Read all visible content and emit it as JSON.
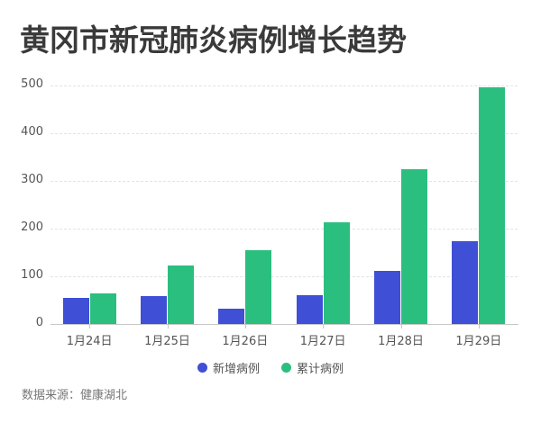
{
  "title": "黄冈市新冠肺炎病例增长趋势",
  "source": "数据来源：健康湖北",
  "colors": {
    "new": "#3f4fd6",
    "cumulative": "#2bbf7f"
  },
  "legend": [
    {
      "label": "新增病例",
      "color": "#3f4fd6"
    },
    {
      "label": "累计病例",
      "color": "#2bbf7f"
    }
  ],
  "chart_data": {
    "type": "bar",
    "title": "黄冈市新冠肺炎病例增长趋势",
    "xlabel": "",
    "ylabel": "",
    "categories": [
      "1月24日",
      "1月25日",
      "1月26日",
      "1月27日",
      "1月28日",
      "1月29日"
    ],
    "series": [
      {
        "name": "新增病例",
        "color": "#3f4fd6",
        "values": [
          55,
          58,
          33,
          60,
          111,
          173
        ]
      },
      {
        "name": "累计病例",
        "color": "#2bbf7f",
        "values": [
          64,
          122,
          154,
          213,
          324,
          496
        ]
      }
    ],
    "yticks": [
      "0",
      "100",
      "200",
      "300",
      "400",
      "500"
    ],
    "ylim": [
      0,
      500
    ],
    "grid": true,
    "legend_position": "bottom"
  }
}
